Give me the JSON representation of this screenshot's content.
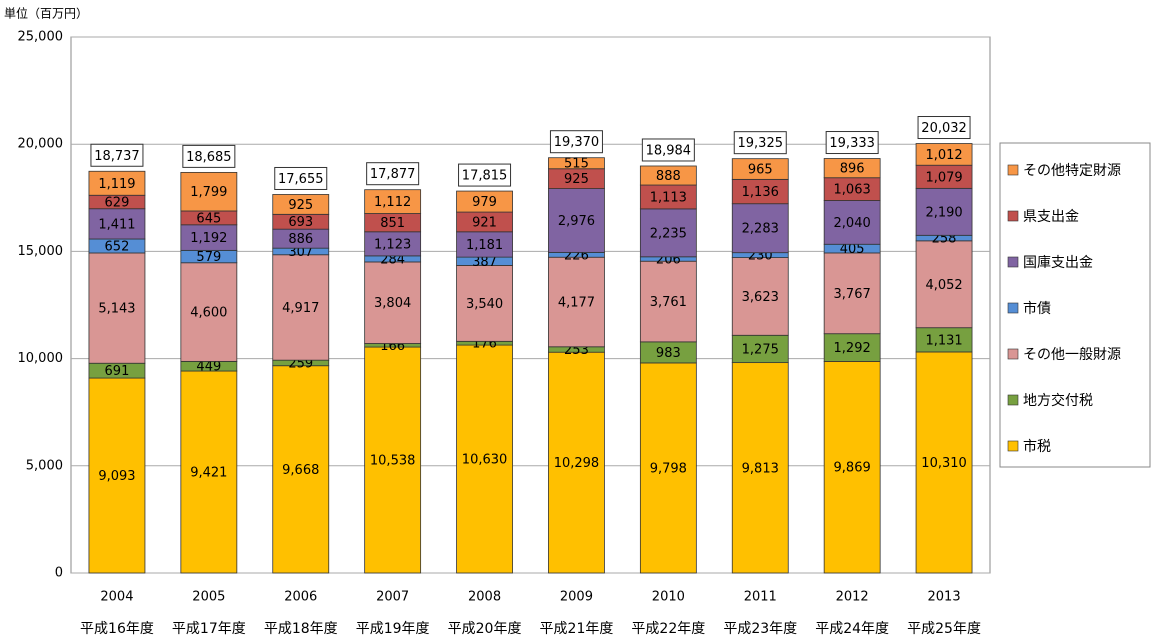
{
  "chart_data": {
    "type": "stacked_bar",
    "y_unit": "単位（百万円）",
    "categories": [
      "2004",
      "2005",
      "2006",
      "2007",
      "2008",
      "2009",
      "2010",
      "2011",
      "2012",
      "2013"
    ],
    "era_labels": [
      "平成16年度",
      "平成17年度",
      "平成18年度",
      "平成19年度",
      "平成20年度",
      "平成21年度",
      "平成22年度",
      "平成23年度",
      "平成24年度",
      "平成25年度"
    ],
    "series": [
      {
        "name": "市税",
        "color": "#FFC000",
        "values": [
          9093,
          9421,
          9668,
          10538,
          10630,
          10298,
          9798,
          9813,
          9869,
          10310
        ],
        "value_labels": [
          "9,093",
          "9,421",
          "9,668",
          "10,538",
          "10,630",
          "10,298",
          "9,798",
          "9,813",
          "9,869",
          "10,310"
        ]
      },
      {
        "name": "地方交付税",
        "color": "#77A040",
        "values": [
          691,
          449,
          259,
          166,
          176,
          253,
          983,
          1275,
          1292,
          1131
        ],
        "value_labels": [
          "691",
          "449",
          "259",
          "166",
          "176",
          "253",
          "983",
          "1,275",
          "1,292",
          "1,131"
        ]
      },
      {
        "name": "その他一般財源",
        "color": "#D99694",
        "values": [
          5143,
          4600,
          4917,
          3804,
          3540,
          4177,
          3761,
          3623,
          3767,
          4052
        ],
        "value_labels": [
          "5,143",
          "4,600",
          "4,917",
          "3,804",
          "3,540",
          "4,177",
          "3,761",
          "3,623",
          "3,767",
          "4,052"
        ]
      },
      {
        "name": "市債",
        "color": "#558ED5",
        "values": [
          652,
          579,
          307,
          284,
          387,
          226,
          206,
          230,
          405,
          258
        ],
        "value_labels": [
          "652",
          "579",
          "307",
          "284",
          "387",
          "226",
          "206",
          "230",
          "405",
          "258"
        ]
      },
      {
        "name": "国庫支出金",
        "color": "#8064A2",
        "values": [
          1411,
          1192,
          886,
          1123,
          1181,
          2976,
          2235,
          2283,
          2040,
          2190
        ],
        "value_labels": [
          "1,411",
          "1,192",
          "886",
          "1,123",
          "1,181",
          "2,976",
          "2,235",
          "2,283",
          "2,040",
          "2,190"
        ]
      },
      {
        "name": "県支出金",
        "color": "#C0504D",
        "values": [
          629,
          645,
          693,
          851,
          921,
          925,
          1113,
          1136,
          1063,
          1079
        ],
        "value_labels": [
          "629",
          "645",
          "693",
          "851",
          "921",
          "925",
          "1,113",
          "1,136",
          "1,063",
          "1,079"
        ]
      },
      {
        "name": "その他特定財源",
        "color": "#F79646",
        "values": [
          1119,
          1799,
          925,
          1112,
          979,
          515,
          888,
          965,
          896,
          1012
        ],
        "value_labels": [
          "1,119",
          "1,799",
          "925",
          "1,112",
          "979",
          "515",
          "888",
          "965",
          "896",
          "1,012"
        ]
      }
    ],
    "totals": [
      18737,
      18685,
      17655,
      17877,
      17815,
      19370,
      18984,
      19325,
      19333,
      20032
    ],
    "total_labels": [
      "18,737",
      "18,685",
      "17,655",
      "17,877",
      "17,815",
      "19,370",
      "18,984",
      "19,325",
      "19,333",
      "20,032"
    ],
    "ylim": [
      0,
      25000
    ],
    "yticks": [
      0,
      {
        "value": 5000,
        "label": "5,000"
      },
      {
        "value": 10000,
        "label": "10,000"
      },
      {
        "value": 15000,
        "label": "15,000"
      },
      {
        "value": 20000,
        "label": "20,000"
      },
      {
        "value": 25000,
        "label": "25,000"
      }
    ],
    "grid": true,
    "legend": "right"
  }
}
